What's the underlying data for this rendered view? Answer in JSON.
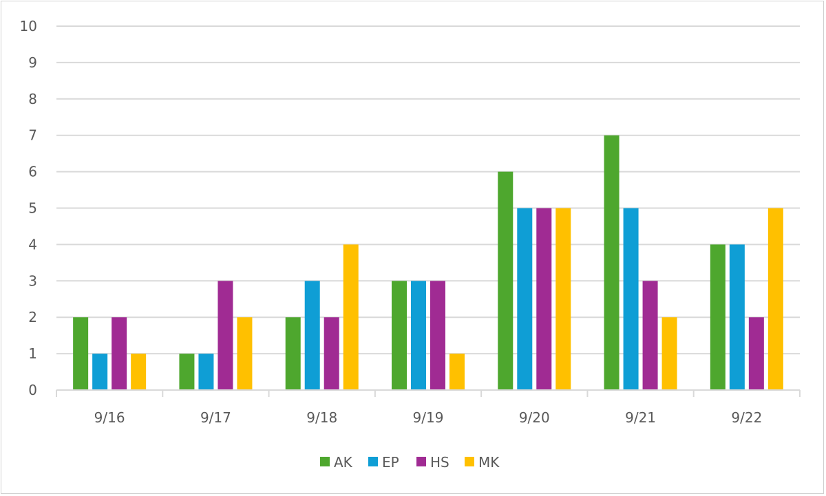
{
  "chart_data": {
    "type": "bar",
    "categories": [
      "9/16",
      "9/17",
      "9/18",
      "9/19",
      "9/20",
      "9/21",
      "9/22"
    ],
    "series": [
      {
        "name": "AK",
        "color": "#4ea72e",
        "values": [
          2,
          1,
          2,
          3,
          6,
          7,
          4
        ]
      },
      {
        "name": "EP",
        "color": "#0f9ed5",
        "values": [
          1,
          1,
          3,
          3,
          5,
          5,
          4
        ]
      },
      {
        "name": "HS",
        "color": "#a02b93",
        "values": [
          2,
          3,
          2,
          3,
          5,
          3,
          2
        ]
      },
      {
        "name": "MK",
        "color": "#ffc000",
        "values": [
          1,
          2,
          4,
          1,
          5,
          2,
          5
        ]
      }
    ],
    "title": "",
    "xlabel": "",
    "ylabel": "",
    "ylim": [
      0,
      10
    ],
    "yticks": [
      0,
      1,
      2,
      3,
      4,
      5,
      6,
      7,
      8,
      9,
      10
    ],
    "grid": true,
    "legend_position": "bottom"
  }
}
